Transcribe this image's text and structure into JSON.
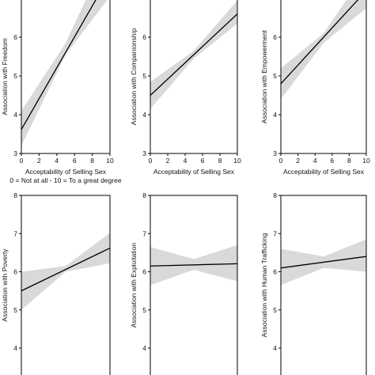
{
  "chart_data": [
    {
      "type": "line",
      "ylabel": "Association with Freedom",
      "xlabel": "Acceptability of Selling Sex",
      "xlabel2": "0 = Not at all - 10 = To a great degree",
      "xlim": [
        0,
        10
      ],
      "ylim": [
        3,
        7
      ],
      "xticks": [
        "0",
        "2",
        "4",
        "6",
        "8",
        "10"
      ],
      "yticks": [
        "3",
        "4",
        "5",
        "6"
      ],
      "line": {
        "x": [
          0,
          10
        ],
        "y": [
          3.62,
          7.6
        ]
      },
      "ci_lower": {
        "x": [
          0,
          5,
          10
        ],
        "y": [
          3.2,
          5.55,
          7.05
        ]
      },
      "ci_upper": {
        "x": [
          0,
          5,
          10
        ],
        "y": [
          4.1,
          5.85,
          8.3
        ]
      }
    },
    {
      "type": "line",
      "ylabel": "Association with Companionship",
      "xlabel": "Acceptability of Selling Sex",
      "xlabel2": "",
      "xlim": [
        0,
        10
      ],
      "ylim": [
        3,
        7
      ],
      "xticks": [
        "0",
        "2",
        "4",
        "6",
        "8",
        "10"
      ],
      "yticks": [
        "3",
        "4",
        "5",
        "6"
      ],
      "line": {
        "x": [
          0,
          10
        ],
        "y": [
          4.5,
          6.6
        ]
      },
      "ci_lower": {
        "x": [
          0,
          5,
          10
        ],
        "y": [
          4.15,
          5.45,
          6.35
        ]
      },
      "ci_upper": {
        "x": [
          0,
          5,
          10
        ],
        "y": [
          4.85,
          5.65,
          6.95
        ]
      }
    },
    {
      "type": "line",
      "ylabel": "Association with Empowerment",
      "xlabel": "Acceptability of Selling Sex",
      "xlabel2": "",
      "xlim": [
        0,
        10
      ],
      "ylim": [
        3,
        7
      ],
      "xticks": [
        "0",
        "2",
        "4",
        "6",
        "8",
        "10"
      ],
      "yticks": [
        "3",
        "4",
        "5",
        "6"
      ],
      "line": {
        "x": [
          0,
          10
        ],
        "y": [
          4.8,
          7.2
        ]
      },
      "ci_lower": {
        "x": [
          0,
          5,
          10
        ],
        "y": [
          4.4,
          5.85,
          6.75
        ]
      },
      "ci_upper": {
        "x": [
          0,
          5,
          10
        ],
        "y": [
          5.2,
          6.1,
          7.7
        ]
      }
    },
    {
      "type": "line",
      "ylabel": "Association with Poverty",
      "xlim": [
        0,
        10
      ],
      "ylim": [
        4,
        8
      ],
      "yticks": [
        "4",
        "5",
        "6",
        "7",
        "8"
      ],
      "line": {
        "x": [
          0,
          10
        ],
        "y": [
          5.5,
          6.62
        ]
      },
      "ci_lower": {
        "x": [
          0,
          5,
          10
        ],
        "y": [
          5.0,
          6.0,
          6.22
        ]
      },
      "ci_upper": {
        "x": [
          0,
          5,
          10
        ],
        "y": [
          6.0,
          6.15,
          7.02
        ]
      }
    },
    {
      "type": "line",
      "ylabel": "Association with Exploitation",
      "xlim": [
        0,
        10
      ],
      "ylim": [
        4,
        8
      ],
      "yticks": [
        "4",
        "5",
        "6",
        "7",
        "8"
      ],
      "line": {
        "x": [
          0,
          10
        ],
        "y": [
          6.15,
          6.21
        ]
      },
      "ci_lower": {
        "x": [
          0,
          5,
          10
        ],
        "y": [
          5.65,
          6.05,
          5.75
        ]
      },
      "ci_upper": {
        "x": [
          0,
          5,
          10
        ],
        "y": [
          6.65,
          6.33,
          6.7
        ]
      }
    },
    {
      "type": "line",
      "ylabel": "Association with Human Trafficking",
      "xlim": [
        0,
        10
      ],
      "ylim": [
        4,
        8
      ],
      "yticks": [
        "4",
        "5",
        "6",
        "7",
        "8"
      ],
      "line": {
        "x": [
          0,
          10
        ],
        "y": [
          6.1,
          6.4
        ]
      },
      "ci_lower": {
        "x": [
          0,
          5,
          10
        ],
        "y": [
          5.65,
          6.1,
          6.0
        ]
      },
      "ci_upper": {
        "x": [
          0,
          5,
          10
        ],
        "y": [
          6.6,
          6.4,
          6.85
        ]
      }
    }
  ]
}
